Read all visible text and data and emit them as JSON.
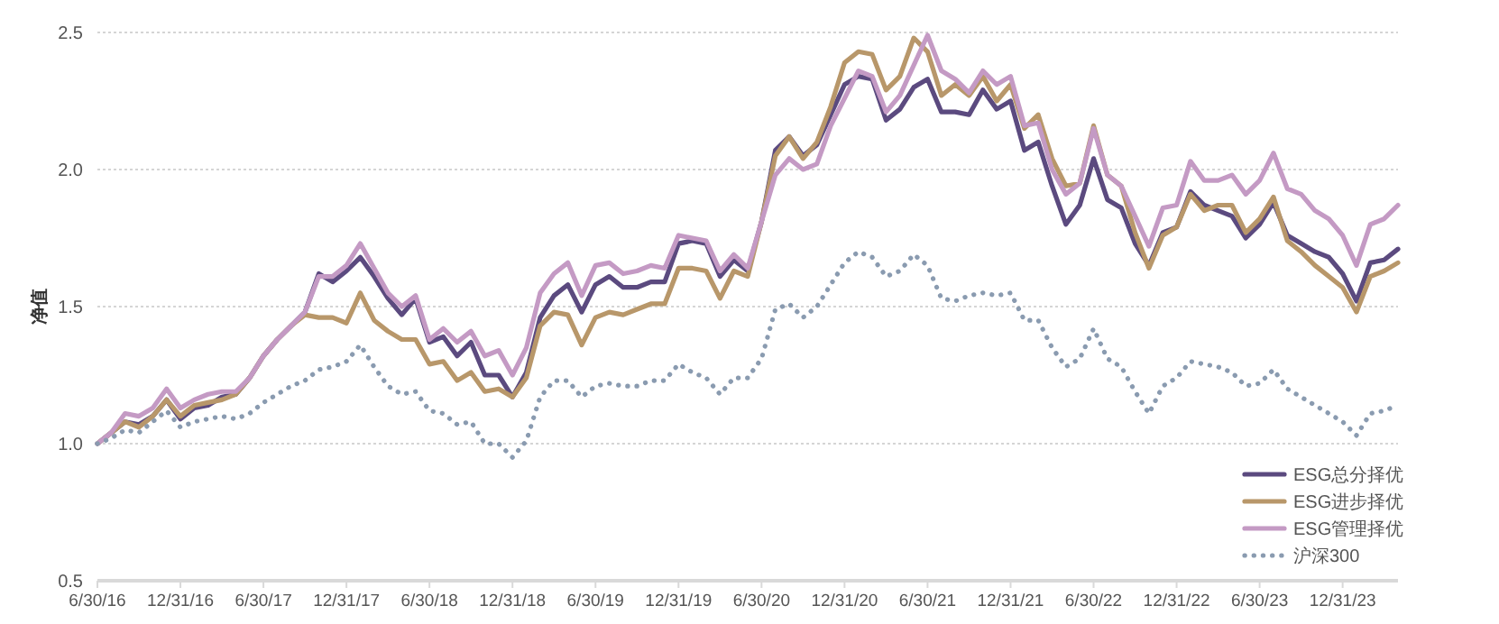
{
  "chart_data": {
    "type": "line",
    "ylabel": "净值",
    "x": [
      "2016-06-30",
      "2016-07-31",
      "2016-08-31",
      "2016-09-30",
      "2016-10-31",
      "2016-11-30",
      "2016-12-31",
      "2017-01-31",
      "2017-02-28",
      "2017-03-31",
      "2017-04-30",
      "2017-05-31",
      "2017-06-30",
      "2017-07-31",
      "2017-08-31",
      "2017-09-30",
      "2017-10-31",
      "2017-11-30",
      "2017-12-31",
      "2018-01-31",
      "2018-02-28",
      "2018-03-31",
      "2018-04-30",
      "2018-05-31",
      "2018-06-30",
      "2018-07-31",
      "2018-08-31",
      "2018-09-30",
      "2018-10-31",
      "2018-11-30",
      "2018-12-31",
      "2019-01-31",
      "2019-02-28",
      "2019-03-31",
      "2019-04-30",
      "2019-05-31",
      "2019-06-30",
      "2019-07-31",
      "2019-08-31",
      "2019-09-30",
      "2019-10-31",
      "2019-11-30",
      "2019-12-31",
      "2020-01-31",
      "2020-02-29",
      "2020-03-31",
      "2020-04-30",
      "2020-05-31",
      "2020-06-30",
      "2020-07-31",
      "2020-08-31",
      "2020-09-30",
      "2020-10-31",
      "2020-11-30",
      "2020-12-31",
      "2021-01-31",
      "2021-02-28",
      "2021-03-31",
      "2021-04-30",
      "2021-05-31",
      "2021-06-30",
      "2021-07-31",
      "2021-08-31",
      "2021-09-30",
      "2021-10-31",
      "2021-11-30",
      "2021-12-31",
      "2022-01-31",
      "2022-02-28",
      "2022-03-31",
      "2022-04-30",
      "2022-05-31",
      "2022-06-30",
      "2022-07-31",
      "2022-08-31",
      "2022-09-30",
      "2022-10-31",
      "2022-11-30",
      "2022-12-31",
      "2023-01-31",
      "2023-02-28",
      "2023-03-31",
      "2023-04-30",
      "2023-05-31",
      "2023-06-30",
      "2023-07-31",
      "2023-08-31",
      "2023-09-30",
      "2023-10-31",
      "2023-11-30",
      "2023-12-31",
      "2024-01-31",
      "2024-02-29",
      "2024-03-31",
      "2024-04-30"
    ],
    "series": [
      {
        "name": "ESG总分择优",
        "color": "#5b4a7f",
        "values": [
          1.0,
          1.04,
          1.08,
          1.07,
          1.1,
          1.16,
          1.09,
          1.13,
          1.14,
          1.17,
          1.18,
          1.24,
          1.32,
          1.38,
          1.43,
          1.48,
          1.62,
          1.59,
          1.63,
          1.68,
          1.61,
          1.53,
          1.47,
          1.53,
          1.37,
          1.39,
          1.32,
          1.37,
          1.25,
          1.25,
          1.17,
          1.26,
          1.46,
          1.54,
          1.58,
          1.48,
          1.58,
          1.61,
          1.57,
          1.57,
          1.59,
          1.59,
          1.73,
          1.74,
          1.73,
          1.61,
          1.67,
          1.63,
          1.81,
          2.07,
          2.12,
          2.05,
          2.09,
          2.2,
          2.31,
          2.34,
          2.33,
          2.18,
          2.22,
          2.3,
          2.33,
          2.21,
          2.21,
          2.2,
          2.29,
          2.22,
          2.25,
          2.07,
          2.1,
          1.94,
          1.8,
          1.87,
          2.04,
          1.89,
          1.86,
          1.73,
          1.65,
          1.77,
          1.79,
          1.92,
          1.87,
          1.85,
          1.83,
          1.75,
          1.8,
          1.88,
          1.76,
          1.73,
          1.7,
          1.68,
          1.62,
          1.52,
          1.66,
          1.67,
          1.71
        ]
      },
      {
        "name": "ESG进步择优",
        "color": "#b8976a",
        "values": [
          1.0,
          1.04,
          1.08,
          1.06,
          1.1,
          1.16,
          1.1,
          1.14,
          1.15,
          1.16,
          1.18,
          1.24,
          1.32,
          1.38,
          1.43,
          1.47,
          1.46,
          1.46,
          1.44,
          1.55,
          1.45,
          1.41,
          1.38,
          1.38,
          1.29,
          1.3,
          1.23,
          1.26,
          1.19,
          1.2,
          1.17,
          1.24,
          1.43,
          1.48,
          1.47,
          1.36,
          1.46,
          1.48,
          1.47,
          1.49,
          1.51,
          1.51,
          1.64,
          1.64,
          1.63,
          1.53,
          1.63,
          1.61,
          1.81,
          2.05,
          2.12,
          2.04,
          2.1,
          2.23,
          2.39,
          2.43,
          2.42,
          2.29,
          2.34,
          2.48,
          2.43,
          2.27,
          2.31,
          2.27,
          2.34,
          2.25,
          2.31,
          2.15,
          2.2,
          2.04,
          1.94,
          1.95,
          2.16,
          1.98,
          1.94,
          1.77,
          1.64,
          1.76,
          1.79,
          1.91,
          1.85,
          1.87,
          1.87,
          1.77,
          1.82,
          1.9,
          1.74,
          1.7,
          1.65,
          1.61,
          1.57,
          1.48,
          1.61,
          1.63,
          1.66
        ]
      },
      {
        "name": "ESG管理择优",
        "color": "#c49ac4",
        "values": [
          1.0,
          1.04,
          1.11,
          1.1,
          1.13,
          1.2,
          1.13,
          1.16,
          1.18,
          1.19,
          1.19,
          1.24,
          1.32,
          1.38,
          1.43,
          1.48,
          1.61,
          1.61,
          1.65,
          1.73,
          1.64,
          1.55,
          1.5,
          1.54,
          1.38,
          1.42,
          1.37,
          1.41,
          1.32,
          1.34,
          1.25,
          1.35,
          1.55,
          1.62,
          1.66,
          1.54,
          1.65,
          1.66,
          1.62,
          1.63,
          1.65,
          1.64,
          1.76,
          1.75,
          1.74,
          1.63,
          1.69,
          1.64,
          1.81,
          1.98,
          2.04,
          2.0,
          2.02,
          2.16,
          2.26,
          2.36,
          2.34,
          2.21,
          2.27,
          2.38,
          2.49,
          2.36,
          2.33,
          2.28,
          2.36,
          2.31,
          2.34,
          2.16,
          2.17,
          2.0,
          1.91,
          1.95,
          2.15,
          1.98,
          1.94,
          1.83,
          1.72,
          1.86,
          1.87,
          2.03,
          1.96,
          1.96,
          1.98,
          1.91,
          1.96,
          2.06,
          1.93,
          1.91,
          1.85,
          1.82,
          1.76,
          1.65,
          1.8,
          1.82,
          1.87
        ]
      },
      {
        "name": "沪深300",
        "color": "#8a9bb0",
        "line_style": "dotted",
        "values": [
          1.0,
          1.02,
          1.05,
          1.04,
          1.08,
          1.12,
          1.06,
          1.08,
          1.09,
          1.1,
          1.09,
          1.11,
          1.15,
          1.18,
          1.21,
          1.23,
          1.27,
          1.28,
          1.3,
          1.36,
          1.28,
          1.21,
          1.18,
          1.19,
          1.12,
          1.11,
          1.07,
          1.08,
          1.0,
          1.0,
          0.95,
          1.01,
          1.17,
          1.23,
          1.23,
          1.17,
          1.21,
          1.22,
          1.21,
          1.21,
          1.23,
          1.23,
          1.29,
          1.26,
          1.24,
          1.18,
          1.24,
          1.24,
          1.31,
          1.49,
          1.51,
          1.46,
          1.5,
          1.58,
          1.66,
          1.7,
          1.68,
          1.61,
          1.63,
          1.69,
          1.65,
          1.53,
          1.52,
          1.54,
          1.55,
          1.54,
          1.55,
          1.45,
          1.45,
          1.35,
          1.28,
          1.31,
          1.42,
          1.31,
          1.28,
          1.19,
          1.11,
          1.21,
          1.24,
          1.3,
          1.29,
          1.28,
          1.26,
          1.21,
          1.22,
          1.27,
          1.2,
          1.17,
          1.14,
          1.11,
          1.08,
          1.03,
          1.11,
          1.12,
          1.14
        ]
      }
    ],
    "xlim": [
      "2016-06-30",
      "2024-04-30"
    ],
    "xticks": [
      {
        "value": "2016-06-30",
        "label": "6/30/16"
      },
      {
        "value": "2016-12-31",
        "label": "12/31/16"
      },
      {
        "value": "2017-06-30",
        "label": "6/30/17"
      },
      {
        "value": "2017-12-31",
        "label": "12/31/17"
      },
      {
        "value": "2018-06-30",
        "label": "6/30/18"
      },
      {
        "value": "2018-12-31",
        "label": "12/31/18"
      },
      {
        "value": "2019-06-30",
        "label": "6/30/19"
      },
      {
        "value": "2019-12-31",
        "label": "12/31/19"
      },
      {
        "value": "2020-06-30",
        "label": "6/30/20"
      },
      {
        "value": "2020-12-31",
        "label": "12/31/20"
      },
      {
        "value": "2021-06-30",
        "label": "6/30/21"
      },
      {
        "value": "2021-12-31",
        "label": "12/31/21"
      },
      {
        "value": "2022-06-30",
        "label": "6/30/22"
      },
      {
        "value": "2022-12-31",
        "label": "12/31/22"
      },
      {
        "value": "2023-06-30",
        "label": "6/30/23"
      },
      {
        "value": "2023-12-31",
        "label": "12/31/23"
      }
    ],
    "ylim": [
      0.5,
      2.5
    ],
    "yticks": [
      0.5,
      {
        "value": 1,
        "label": "1.0"
      },
      1.5,
      {
        "value": 2,
        "label": "2.0"
      },
      2.5
    ],
    "grid": "y",
    "legend": "bottom right",
    "marker": "none",
    "line_style": "solid"
  }
}
